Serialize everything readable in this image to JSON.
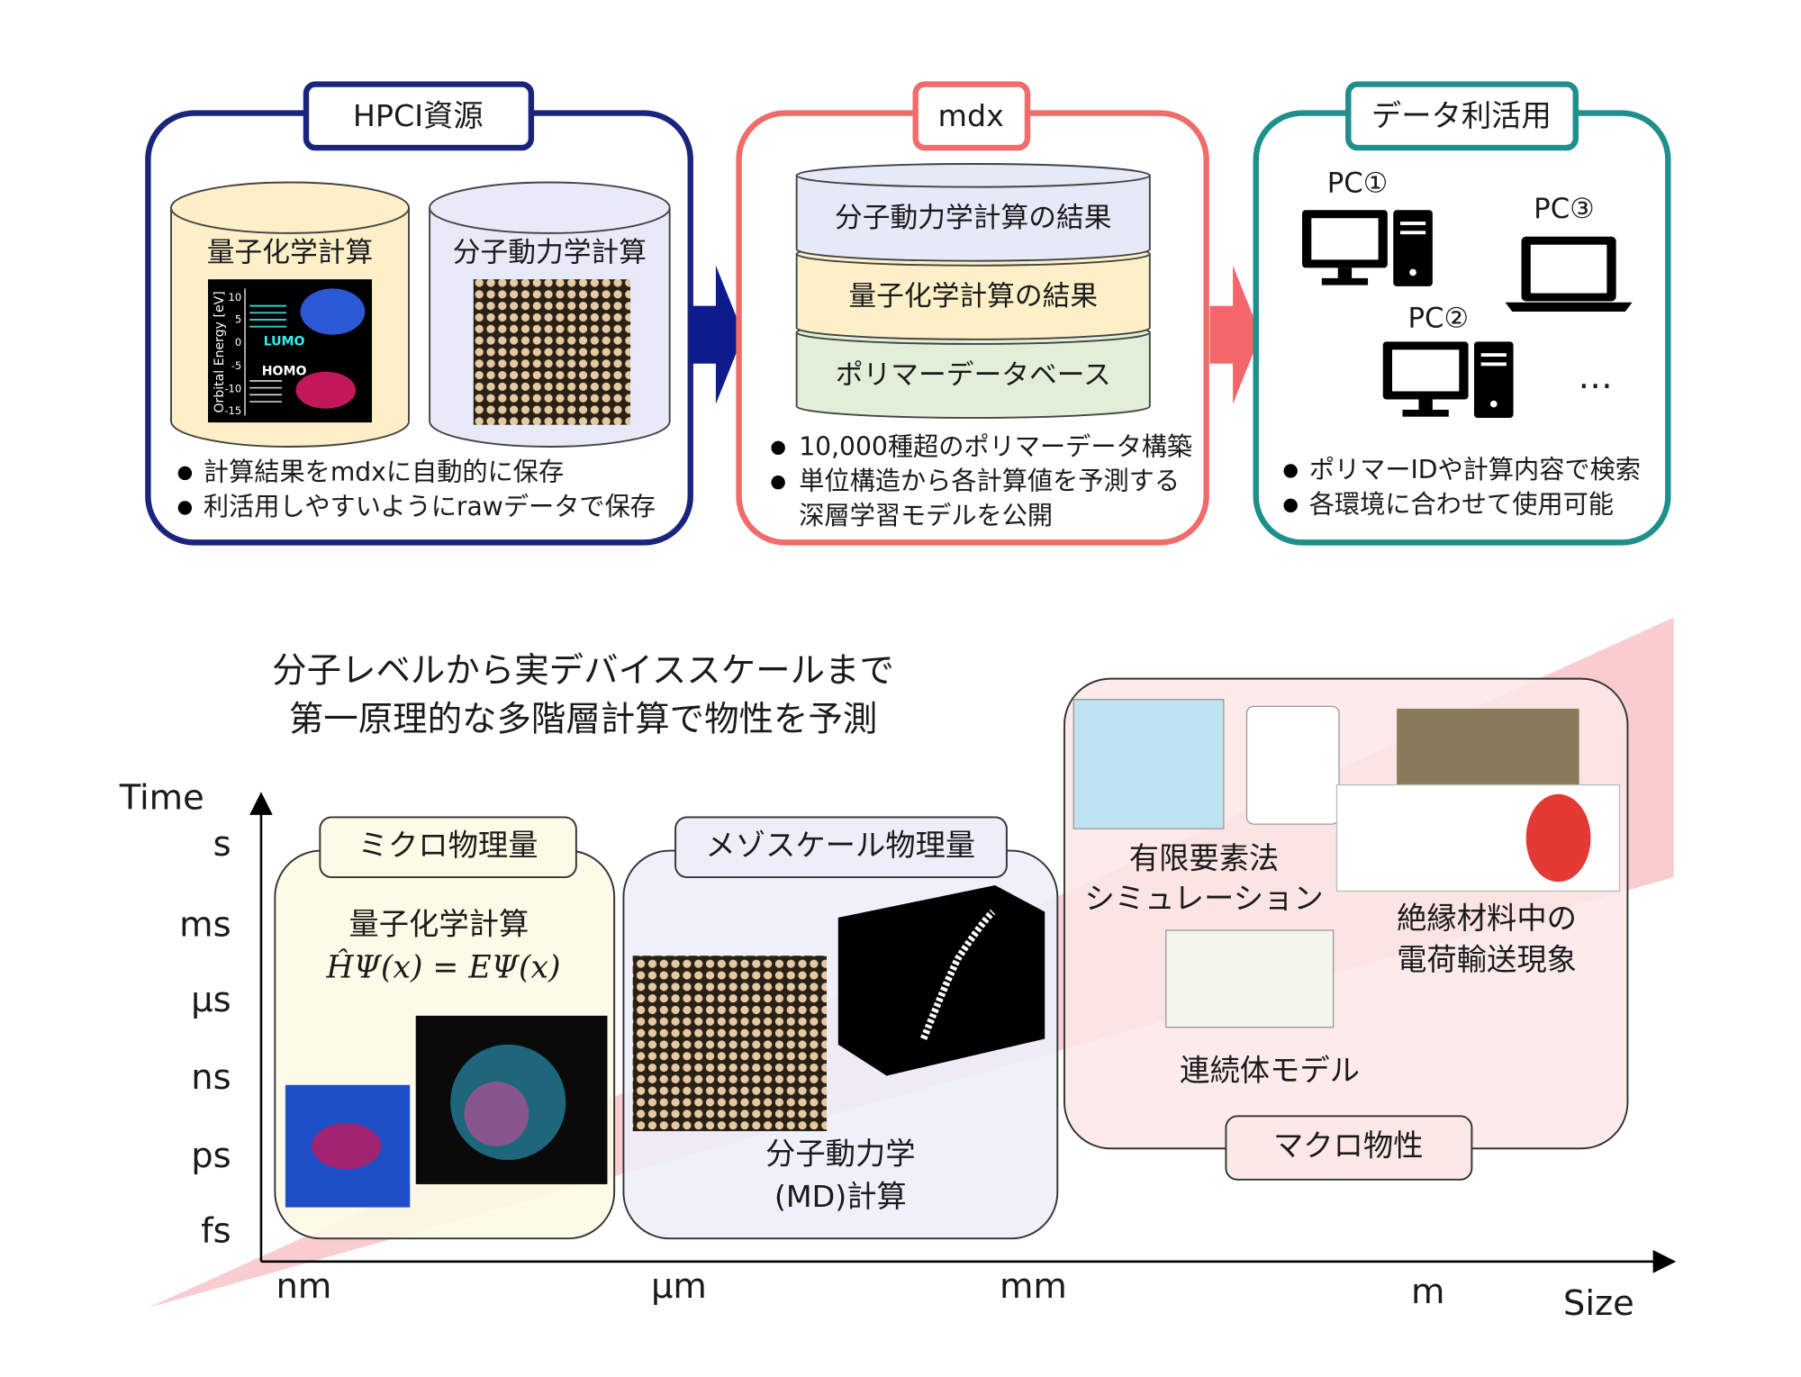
{
  "hpci": {
    "title": "HPCI資源",
    "cylinders": [
      "量子化学計算",
      "分子動力学計算"
    ],
    "orbital_chart": {
      "axis_label": "Orbital Energy [eV]",
      "ticks": [
        "10",
        "5",
        "0",
        "-5",
        "-10",
        "-15"
      ],
      "lumo": "LUMO",
      "homo": "HOMO"
    },
    "items": [
      "計算結果をmdxに自動的に保存",
      "利活用しやすいようにrawデータで保存"
    ]
  },
  "mdx": {
    "title": "mdx",
    "layers": [
      "分子動力学計算の結果",
      "量子化学計算の結果",
      "ポリマーデータベース"
    ],
    "items": [
      [
        "10,000種超のポリマーデータ構築"
      ],
      [
        "単位構造から各計算値を予測する",
        "深層学習モデルを公開"
      ]
    ]
  },
  "data_use": {
    "title": "データ利活用",
    "devices": [
      "PC①",
      "PC③",
      "PC②",
      "…"
    ],
    "items": [
      "ポリマーIDや計算内容で検索",
      "各環境に合わせて使用可能"
    ]
  },
  "scale": {
    "headline": [
      "分子レベルから実デバイススケールまで",
      "第一原理的な多階層計算で物性を予測"
    ],
    "y_label": "Time",
    "y_ticks": [
      "s",
      "ms",
      "μs",
      "ns",
      "ps",
      "fs"
    ],
    "x_label": "Size",
    "x_ticks": [
      "nm",
      "μm",
      "mm",
      "m"
    ],
    "micro": {
      "title": "ミクロ物理量",
      "method": "量子化学計算",
      "equation": "ĤΨ(x) = EΨ(x)"
    },
    "meso": {
      "title": "メゾスケール物理量",
      "method": [
        "分子動力学",
        "(MD)計算"
      ]
    },
    "macro": {
      "title": "マクロ物性",
      "fem": [
        "有限要素法",
        "シミュレーション"
      ],
      "continuum": "連続体モデル",
      "transport": [
        "絶縁材料中の",
        "電荷輸送現象"
      ]
    }
  }
}
